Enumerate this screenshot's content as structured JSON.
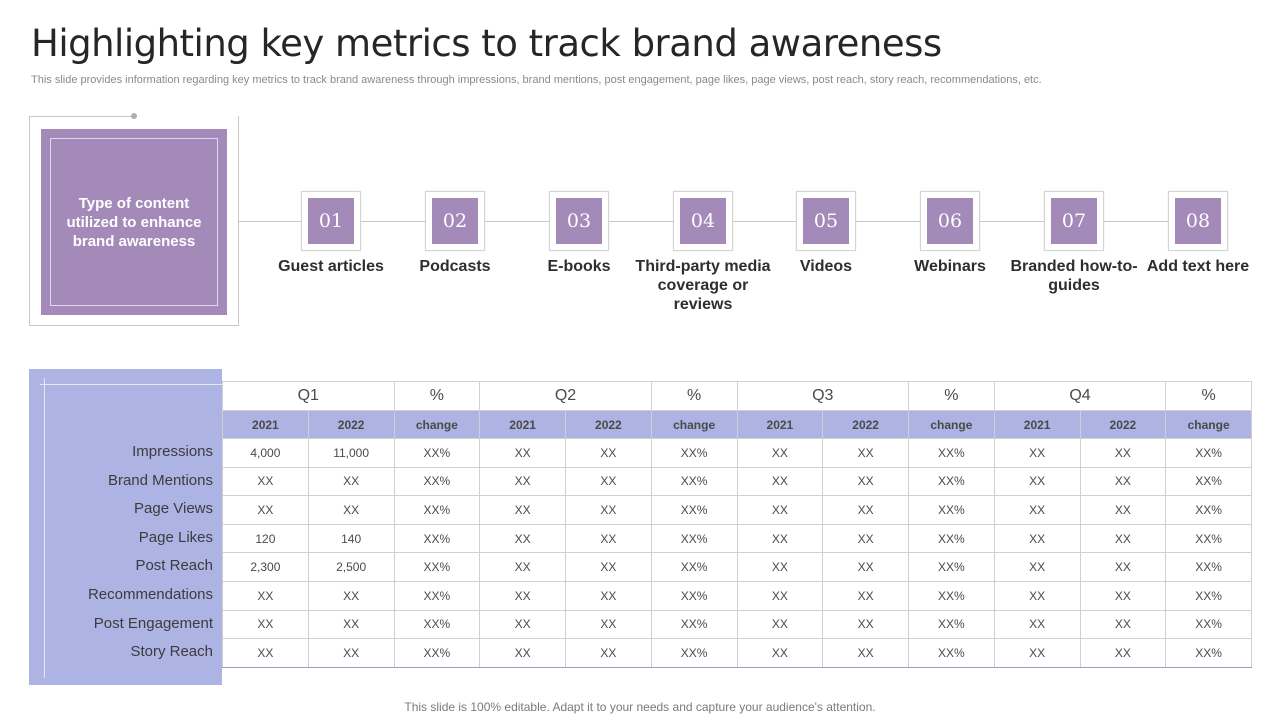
{
  "title": "Highlighting key metrics to track brand awareness",
  "subtitle": "This slide provides information regarding key metrics to track brand awareness through impressions, brand mentions, post engagement, page likes, page views, post reach, story reach, recommendations, etc.",
  "content_box": {
    "label": "Type of content utilized to enhance brand awareness"
  },
  "accent_color": "#a48ab8",
  "table_color": "#adb3e3",
  "steps": [
    {
      "num": "01",
      "label": "Guest articles"
    },
    {
      "num": "02",
      "label": "Podcasts"
    },
    {
      "num": "03",
      "label": "E-books"
    },
    {
      "num": "04",
      "label": "Third-party media coverage or reviews"
    },
    {
      "num": "05",
      "label": "Videos"
    },
    {
      "num": "06",
      "label": "Webinars"
    },
    {
      "num": "07",
      "label": "Branded how-to-guides"
    },
    {
      "num": "08",
      "label": "Add text here"
    }
  ],
  "table": {
    "group_headers": [
      "Q1",
      "%",
      "Q2",
      "%",
      "Q3",
      "%",
      "Q4",
      "%"
    ],
    "sub_headers": [
      "2021",
      "2022",
      "change",
      "2021",
      "2022",
      "change",
      "2021",
      "2022",
      "change",
      "2021",
      "2022",
      "change"
    ],
    "rows": [
      {
        "label": "Impressions",
        "cells": [
          "4,000",
          "11,000",
          "XX%",
          "XX",
          "XX",
          "XX%",
          "XX",
          "XX",
          "XX%",
          "XX",
          "XX",
          "XX%"
        ]
      },
      {
        "label": "Brand  Mentions",
        "cells": [
          "XX",
          "XX",
          "XX%",
          "XX",
          "XX",
          "XX%",
          "XX",
          "XX",
          "XX%",
          "XX",
          "XX",
          "XX%"
        ]
      },
      {
        "label": "Page Views",
        "cells": [
          "XX",
          "XX",
          "XX%",
          "XX",
          "XX",
          "XX%",
          "XX",
          "XX",
          "XX%",
          "XX",
          "XX",
          "XX%"
        ]
      },
      {
        "label": "Page Likes",
        "cells": [
          "120",
          "140",
          "XX%",
          "XX",
          "XX",
          "XX%",
          "XX",
          "XX",
          "XX%",
          "XX",
          "XX",
          "XX%"
        ]
      },
      {
        "label": "Post Reach",
        "cells": [
          "2,300",
          "2,500",
          "XX%",
          "XX",
          "XX",
          "XX%",
          "XX",
          "XX",
          "XX%",
          "XX",
          "XX",
          "XX%"
        ]
      },
      {
        "label": "Recommendations",
        "cells": [
          "XX",
          "XX",
          "XX%",
          "XX",
          "XX",
          "XX%",
          "XX",
          "XX",
          "XX%",
          "XX",
          "XX",
          "XX%"
        ]
      },
      {
        "label": "Post Engagement",
        "cells": [
          "XX",
          "XX",
          "XX%",
          "XX",
          "XX",
          "XX%",
          "XX",
          "XX",
          "XX%",
          "XX",
          "XX",
          "XX%"
        ]
      },
      {
        "label": "Story Reach",
        "cells": [
          "XX",
          "XX",
          "XX%",
          "XX",
          "XX",
          "XX%",
          "XX",
          "XX",
          "XX%",
          "XX",
          "XX",
          "XX%"
        ]
      }
    ]
  },
  "footer": "This slide is 100% editable. Adapt it to your needs and capture your audience's attention."
}
